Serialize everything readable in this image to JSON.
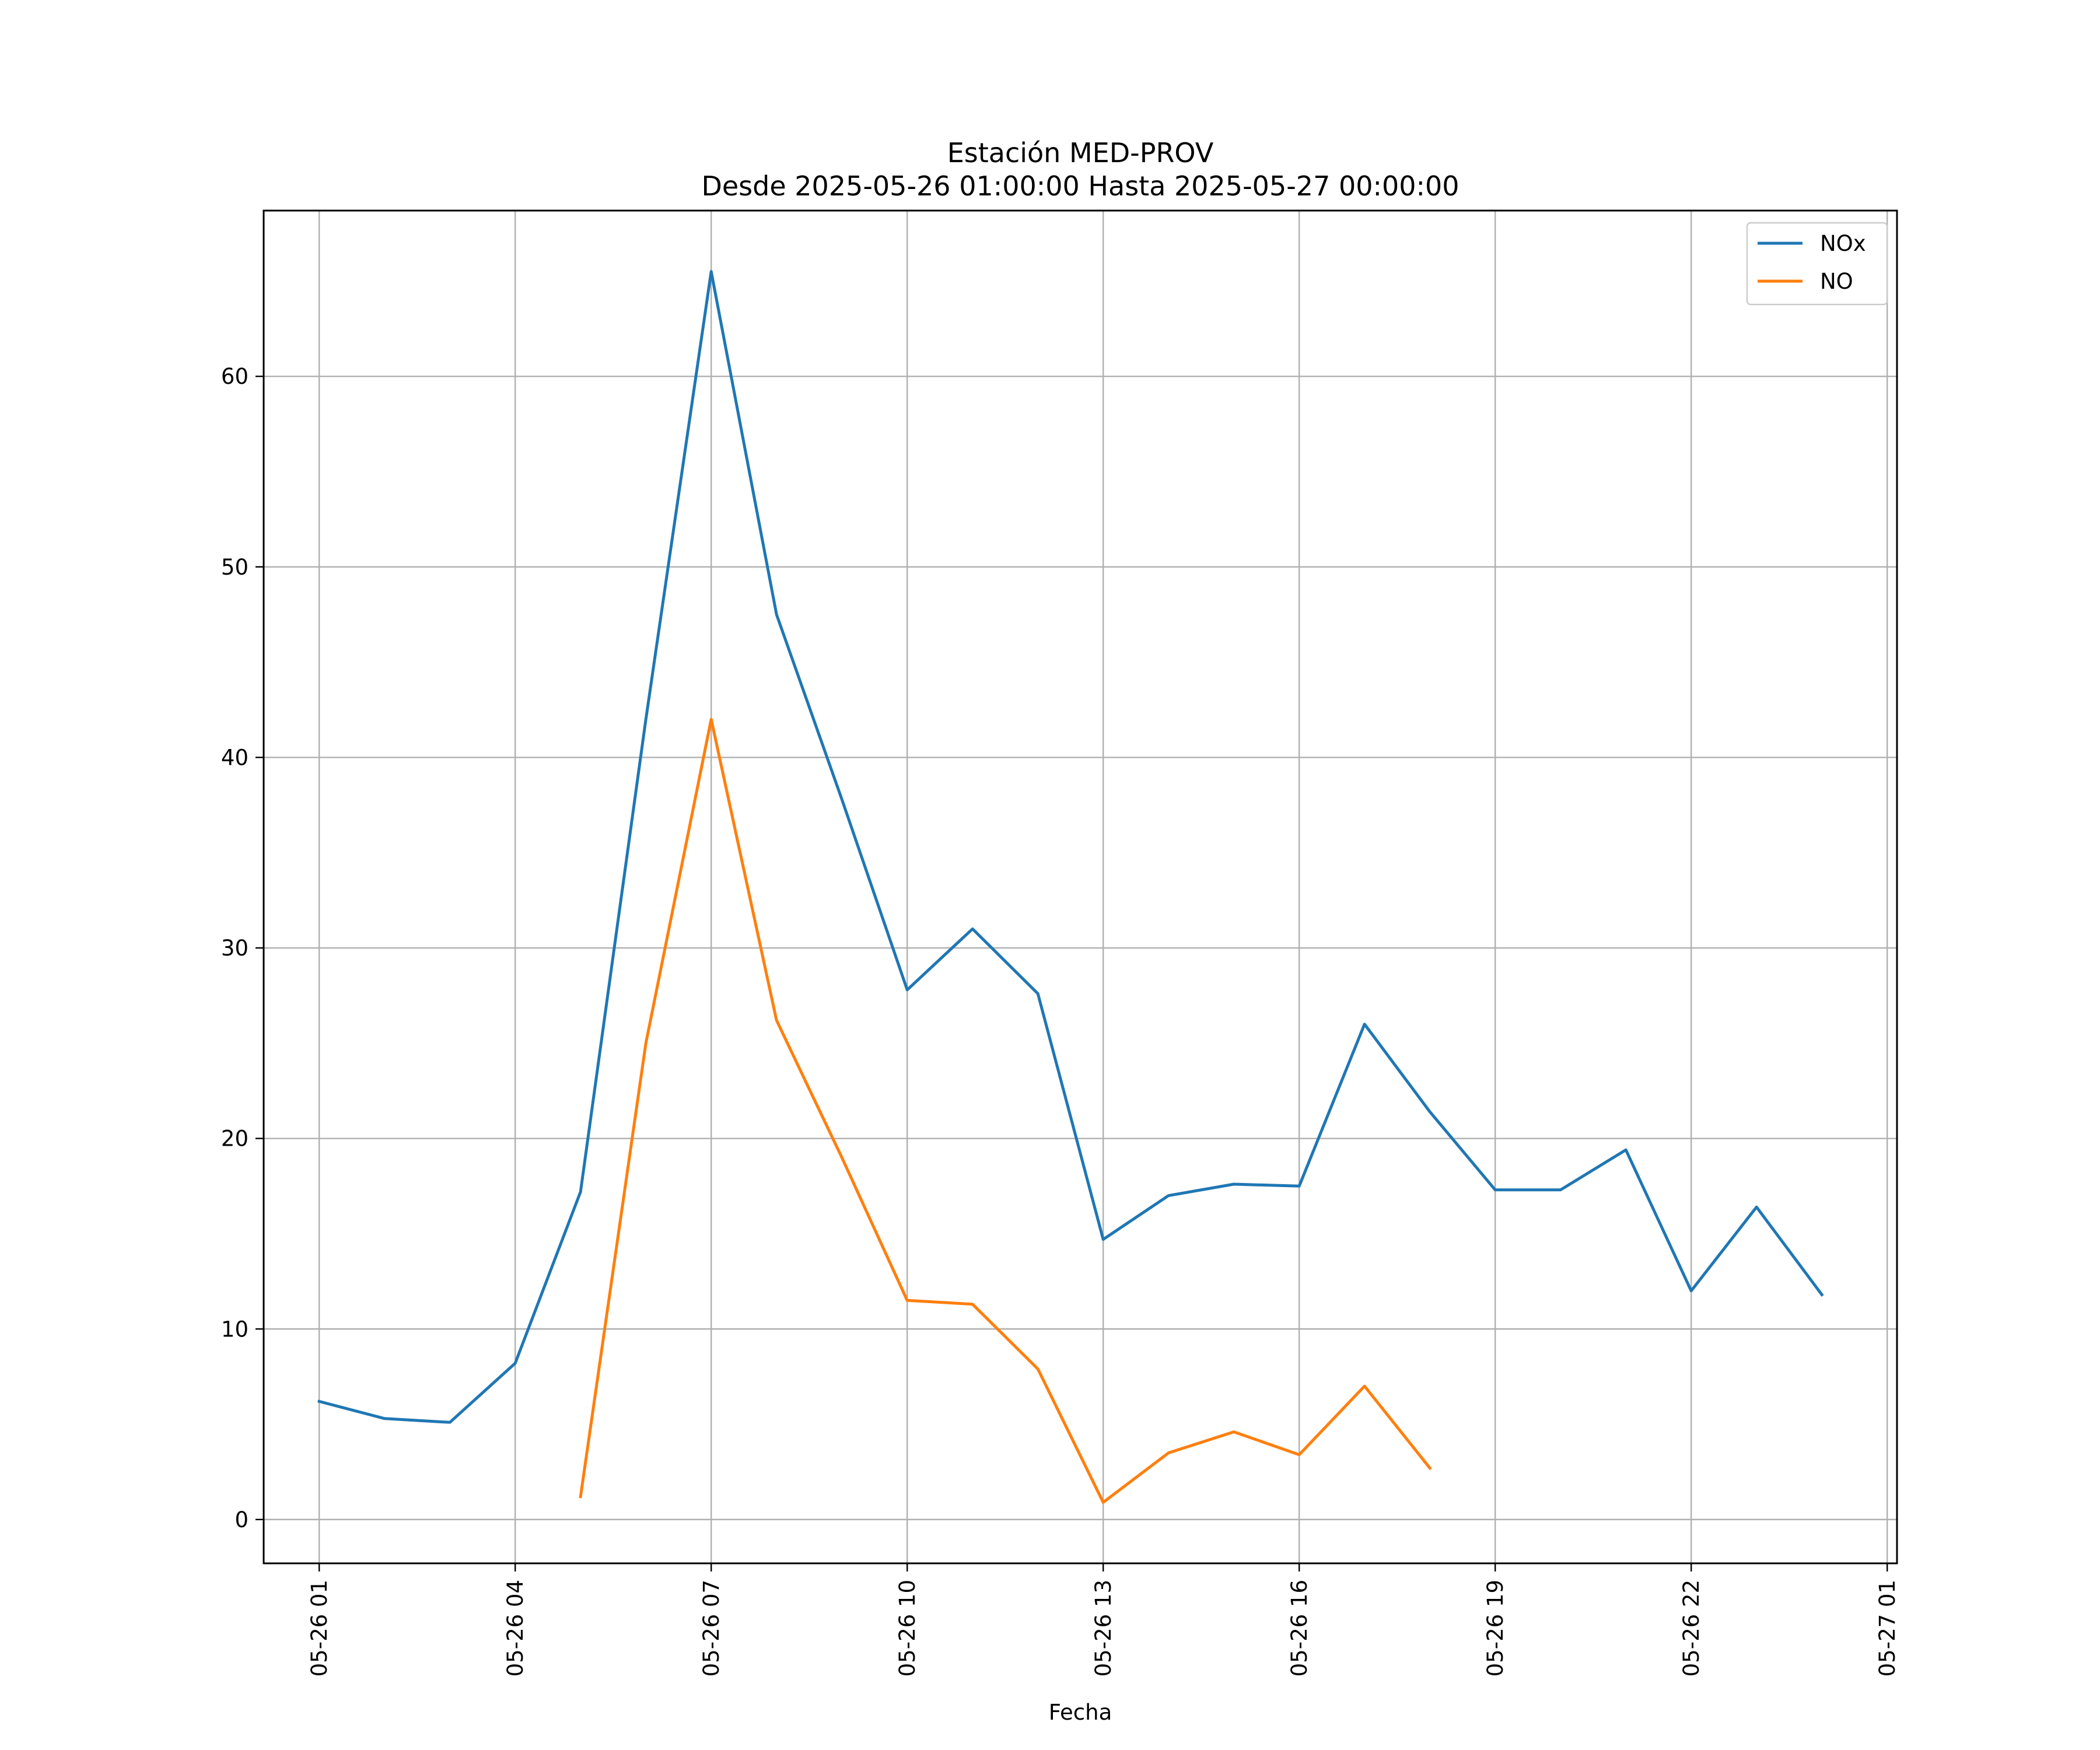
{
  "chart_data": {
    "type": "line",
    "title": "Estación MED-PROV",
    "subtitle": "Desde 2025-05-26 01:00:00 Hasta 2025-05-27 00:00:00",
    "xlabel": "Fecha",
    "ylabel": "",
    "x": [
      "2025-05-26 01:00",
      "2025-05-26 02:00",
      "2025-05-26 03:00",
      "2025-05-26 04:00",
      "2025-05-26 05:00",
      "2025-05-26 06:00",
      "2025-05-26 07:00",
      "2025-05-26 08:00",
      "2025-05-26 09:00",
      "2025-05-26 10:00",
      "2025-05-26 11:00",
      "2025-05-26 12:00",
      "2025-05-26 13:00",
      "2025-05-26 14:00",
      "2025-05-26 15:00",
      "2025-05-26 16:00",
      "2025-05-26 17:00",
      "2025-05-26 18:00",
      "2025-05-26 19:00",
      "2025-05-26 20:00",
      "2025-05-26 21:00",
      "2025-05-26 22:00",
      "2025-05-26 23:00",
      "2025-05-27 00:00"
    ],
    "series": [
      {
        "name": "NOx",
        "color": "#1f77b4",
        "values": [
          6.2,
          5.3,
          5.1,
          8.2,
          17.2,
          42.0,
          65.5,
          47.5,
          37.8,
          27.8,
          31.0,
          27.6,
          14.7,
          17.0,
          17.6,
          17.5,
          26.0,
          21.4,
          17.3,
          17.3,
          19.4,
          12.0,
          16.4,
          11.8
        ]
      },
      {
        "name": "NO",
        "color": "#ff7f0e",
        "values": [
          null,
          null,
          null,
          null,
          1.2,
          25.0,
          42.0,
          26.2,
          19.0,
          11.5,
          11.3,
          7.9,
          0.9,
          3.5,
          4.6,
          3.4,
          7.0,
          2.7,
          null,
          null,
          null,
          null,
          null,
          null
        ]
      }
    ],
    "x_ticks": [
      "05-26 01",
      "05-26 04",
      "05-26 07",
      "05-26 10",
      "05-26 13",
      "05-26 16",
      "05-26 19",
      "05-26 22",
      "05-27 01"
    ],
    "y_ticks": [
      0,
      10,
      20,
      30,
      40,
      50,
      60
    ],
    "ylim": [
      -2.3,
      68.7
    ],
    "xlim": [
      "2025-05-26 00:09",
      "2025-05-27 01:09"
    ],
    "grid": true,
    "legend_position": "upper right"
  }
}
